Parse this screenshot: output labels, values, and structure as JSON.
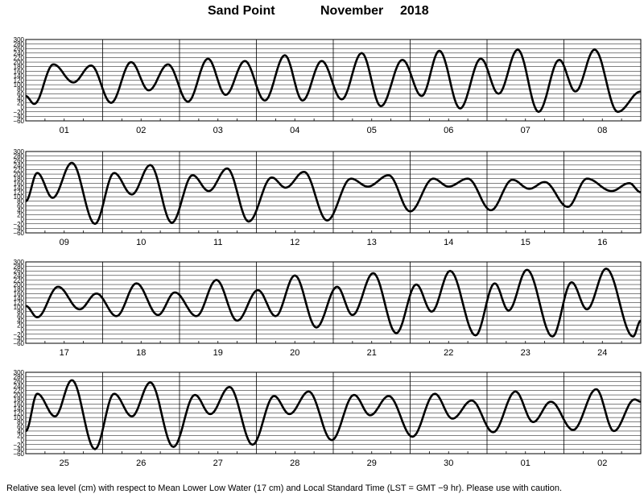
{
  "header": {
    "station": "Sand Point",
    "month": "November",
    "year": "2018"
  },
  "footer": {
    "note": "Relative sea level (cm) with respect to Mean Lower Low Water (17 cm) and Local Standard Time (LST = GMT −9 hr). Please use with caution."
  },
  "chart_data": {
    "type": "line",
    "ylim": [
      -60,
      300
    ],
    "yticks": [
      "300",
      "280",
      "260",
      "240",
      "220",
      "200",
      "180",
      "160",
      "140",
      "120",
      "100",
      "80",
      "60",
      "40",
      "20",
      "0",
      "−20",
      "−40",
      "−60"
    ],
    "grid": true,
    "panels": [
      {
        "day_labels": [
          "01",
          "02",
          "03",
          "04",
          "05",
          "06",
          "07",
          "08"
        ],
        "extrema": [
          [
            0,
            50
          ],
          [
            0.11,
            15
          ],
          [
            0.36,
            190
          ],
          [
            0.62,
            110
          ],
          [
            0.85,
            185
          ],
          [
            1.11,
            20
          ],
          [
            1.37,
            200
          ],
          [
            1.6,
            75
          ],
          [
            1.85,
            190
          ],
          [
            2.11,
            25
          ],
          [
            2.37,
            215
          ],
          [
            2.6,
            55
          ],
          [
            2.85,
            205
          ],
          [
            3.11,
            30
          ],
          [
            3.37,
            230
          ],
          [
            3.6,
            30
          ],
          [
            3.85,
            205
          ],
          [
            4.11,
            35
          ],
          [
            4.37,
            240
          ],
          [
            4.62,
            5
          ],
          [
            4.9,
            210
          ],
          [
            5.15,
            50
          ],
          [
            5.38,
            250
          ],
          [
            5.65,
            -5
          ],
          [
            5.92,
            215
          ],
          [
            6.15,
            60
          ],
          [
            6.4,
            255
          ],
          [
            6.67,
            -20
          ],
          [
            6.94,
            210
          ],
          [
            7.15,
            70
          ],
          [
            7.4,
            255
          ],
          [
            7.7,
            -20
          ],
          [
            8,
            70
          ]
        ]
      },
      {
        "day_labels": [
          "09",
          "10",
          "11",
          "12",
          "13",
          "14",
          "15",
          "16"
        ],
        "extrema": [
          [
            0,
            80
          ],
          [
            0.15,
            205
          ],
          [
            0.35,
            95
          ],
          [
            0.6,
            250
          ],
          [
            0.9,
            -20
          ],
          [
            1.15,
            205
          ],
          [
            1.38,
            110
          ],
          [
            1.62,
            240
          ],
          [
            1.9,
            -15
          ],
          [
            2.17,
            195
          ],
          [
            2.38,
            125
          ],
          [
            2.62,
            225
          ],
          [
            2.9,
            -10
          ],
          [
            3.2,
            185
          ],
          [
            3.38,
            140
          ],
          [
            3.62,
            210
          ],
          [
            3.92,
            -5
          ],
          [
            4.23,
            180
          ],
          [
            4.45,
            145
          ],
          [
            4.72,
            195
          ],
          [
            5,
            35
          ],
          [
            5.3,
            180
          ],
          [
            5.5,
            145
          ],
          [
            5.75,
            180
          ],
          [
            6.05,
            40
          ],
          [
            6.33,
            175
          ],
          [
            6.55,
            135
          ],
          [
            6.75,
            165
          ],
          [
            7.05,
            55
          ],
          [
            7.3,
            180
          ],
          [
            7.62,
            125
          ],
          [
            7.85,
            160
          ],
          [
            8,
            120
          ]
        ]
      },
      {
        "day_labels": [
          "17",
          "18",
          "19",
          "20",
          "21",
          "22",
          "23",
          "24"
        ],
        "extrema": [
          [
            0,
            105
          ],
          [
            0.15,
            55
          ],
          [
            0.42,
            190
          ],
          [
            0.7,
            90
          ],
          [
            0.92,
            160
          ],
          [
            1.18,
            60
          ],
          [
            1.44,
            205
          ],
          [
            1.72,
            65
          ],
          [
            1.94,
            165
          ],
          [
            2.22,
            60
          ],
          [
            2.48,
            220
          ],
          [
            2.75,
            40
          ],
          [
            3.02,
            175
          ],
          [
            3.25,
            60
          ],
          [
            3.5,
            240
          ],
          [
            3.78,
            10
          ],
          [
            4.05,
            190
          ],
          [
            4.25,
            65
          ],
          [
            4.52,
            250
          ],
          [
            4.82,
            -15
          ],
          [
            5.08,
            200
          ],
          [
            5.28,
            80
          ],
          [
            5.52,
            260
          ],
          [
            5.85,
            -25
          ],
          [
            6.1,
            205
          ],
          [
            6.28,
            85
          ],
          [
            6.52,
            265
          ],
          [
            6.85,
            -30
          ],
          [
            7.1,
            210
          ],
          [
            7.3,
            90
          ],
          [
            7.55,
            270
          ],
          [
            7.9,
            -30
          ],
          [
            8,
            40
          ]
        ]
      },
      {
        "day_labels": [
          "25",
          "26",
          "27",
          "28",
          "29",
          "30",
          "01",
          "02"
        ],
        "extrema": [
          [
            0,
            40
          ],
          [
            0.15,
            205
          ],
          [
            0.38,
            105
          ],
          [
            0.6,
            265
          ],
          [
            0.9,
            -40
          ],
          [
            1.15,
            205
          ],
          [
            1.38,
            105
          ],
          [
            1.62,
            255
          ],
          [
            1.92,
            -30
          ],
          [
            2.2,
            200
          ],
          [
            2.4,
            115
          ],
          [
            2.65,
            235
          ],
          [
            2.95,
            -20
          ],
          [
            3.23,
            195
          ],
          [
            3.43,
            115
          ],
          [
            3.68,
            215
          ],
          [
            3.98,
            0
          ],
          [
            4.27,
            200
          ],
          [
            4.48,
            110
          ],
          [
            4.72,
            195
          ],
          [
            5.03,
            15
          ],
          [
            5.32,
            205
          ],
          [
            5.55,
            95
          ],
          [
            5.8,
            175
          ],
          [
            6.08,
            35
          ],
          [
            6.37,
            215
          ],
          [
            6.6,
            80
          ],
          [
            6.83,
            170
          ],
          [
            7.12,
            45
          ],
          [
            7.42,
            225
          ],
          [
            7.65,
            40
          ],
          [
            7.92,
            180
          ],
          [
            8,
            170
          ]
        ]
      }
    ]
  }
}
